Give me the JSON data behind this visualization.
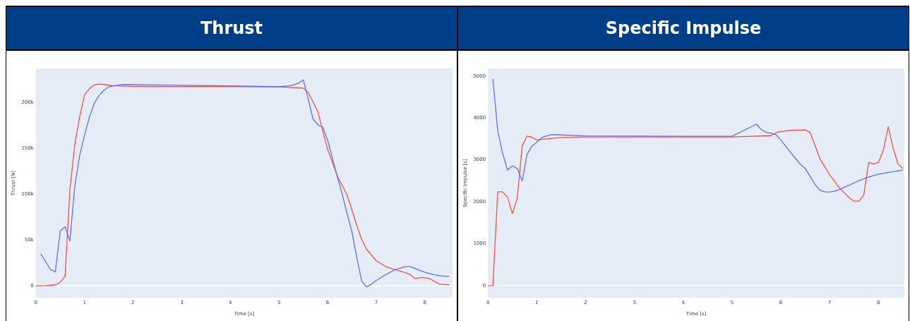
{
  "chart_data": [
    {
      "type": "line",
      "title": "Thrust",
      "xlabel": "Time [s]",
      "ylabel": "Thrust [N]",
      "xlim": [
        0,
        8.57
      ],
      "ylim": [
        -13000,
        237000
      ],
      "xticks": [
        0,
        1,
        2,
        3,
        4,
        5,
        6,
        7,
        8
      ],
      "yticks": [
        0,
        {
          "value": 50000,
          "label": "50k"
        },
        {
          "value": 100000,
          "label": "100k"
        },
        {
          "value": 150000,
          "label": "150k"
        },
        {
          "value": 200000,
          "label": "200k"
        }
      ],
      "grid": false,
      "legend": false,
      "marker": "none",
      "line_style": "solid",
      "ref_lines": [
        {
          "axis": "y",
          "value": 0,
          "color": "#ffffff"
        }
      ],
      "series": [
        {
          "color": "#636efa",
          "x": [
            0.1,
            0.3,
            0.4,
            0.5,
            0.6,
            0.7,
            0.8,
            0.9,
            1.0,
            1.1,
            1.2,
            1.3,
            1.4,
            1.5,
            1.6,
            1.8,
            2.5,
            4.0,
            5.0,
            5.2,
            5.3,
            5.4,
            5.5,
            5.6,
            5.7,
            5.8,
            5.9,
            6.0,
            6.1,
            6.2,
            6.3,
            6.4,
            6.5,
            6.6,
            6.7,
            6.8,
            6.9,
            7.0,
            7.2,
            7.4,
            7.6,
            7.7,
            7.8,
            8.0,
            8.2,
            8.4,
            8.5
          ],
          "values": [
            35000,
            18000,
            15500,
            60000,
            64500,
            49000,
            109000,
            142000,
            164000,
            184000,
            199000,
            207500,
            213000,
            217000,
            218000,
            219500,
            219000,
            218000,
            217000,
            218000,
            219000,
            221000,
            224500,
            204000,
            182000,
            175500,
            173000,
            159000,
            139000,
            119000,
            100000,
            79000,
            59000,
            31000,
            5500,
            -1000,
            2000,
            6000,
            12500,
            18000,
            21000,
            21000,
            19000,
            15000,
            12000,
            10500,
            10500
          ]
        },
        {
          "color": "#ef553b",
          "x": [
            0,
            0.2,
            0.3,
            0.4,
            0.5,
            0.6,
            0.7,
            0.8,
            0.9,
            1.0,
            1.1,
            1.2,
            1.3,
            1.4,
            1.6,
            2.0,
            5.0,
            5.5,
            5.6,
            5.8,
            5.9,
            6.0,
            6.2,
            6.4,
            6.5,
            6.6,
            6.7,
            6.8,
            7.0,
            7.2,
            7.4,
            7.6,
            7.7,
            7.8,
            7.9,
            8.0,
            8.1,
            8.2,
            8.3,
            8.5
          ],
          "values": [
            0,
            300,
            800,
            1200,
            4000,
            10500,
            105000,
            154000,
            184000,
            208000,
            215000,
            219000,
            220000,
            219500,
            218000,
            217500,
            217000,
            215500,
            211000,
            190000,
            169000,
            149000,
            120000,
            99000,
            83000,
            66000,
            51000,
            40000,
            27500,
            21000,
            17500,
            14500,
            12500,
            8000,
            9000,
            9000,
            8000,
            5000,
            2000,
            1200
          ]
        }
      ]
    },
    {
      "type": "line",
      "title": "Specific Impulse",
      "xlabel": "Time [s]",
      "ylabel": "Specific Impulse [s]",
      "xlim": [
        0,
        8.53
      ],
      "ylim": [
        -290,
        5180
      ],
      "xticks": [
        0,
        1,
        2,
        3,
        4,
        5,
        6,
        7,
        8
      ],
      "yticks": [
        0,
        1000,
        2000,
        3000,
        4000,
        5000
      ],
      "grid": false,
      "legend": false,
      "marker": "none",
      "line_style": "solid",
      "ref_lines": [
        {
          "axis": "y",
          "value": 0,
          "color": "#ffffff"
        }
      ],
      "series": [
        {
          "color": "#636efa",
          "x": [
            0.1,
            0.2,
            0.3,
            0.4,
            0.5,
            0.6,
            0.7,
            0.8,
            0.9,
            1.0,
            1.1,
            1.2,
            1.3,
            1.5,
            2.0,
            4.0,
            5.0,
            5.5,
            5.6,
            5.7,
            5.8,
            5.9,
            6.0,
            6.2,
            6.4,
            6.5,
            6.6,
            6.7,
            6.8,
            6.9,
            7.0,
            7.1,
            7.2,
            7.4,
            7.6,
            7.8,
            8.0,
            8.2,
            8.5
          ],
          "values": [
            4935,
            3693,
            3148,
            2756,
            2859,
            2794,
            2495,
            3132,
            3328,
            3420,
            3529,
            3573,
            3600,
            3595,
            3573,
            3562,
            3562,
            3851,
            3720,
            3655,
            3638,
            3600,
            3475,
            3175,
            2892,
            2794,
            2603,
            2413,
            2277,
            2239,
            2233,
            2250,
            2293,
            2397,
            2505,
            2593,
            2658,
            2702,
            2756
          ]
        },
        {
          "color": "#ef553b",
          "x": [
            0,
            0.1,
            0.2,
            0.3,
            0.4,
            0.5,
            0.6,
            0.7,
            0.8,
            0.9,
            1.0,
            1.1,
            1.3,
            1.5,
            2.0,
            4.0,
            5.0,
            5.8,
            5.9,
            6.0,
            6.2,
            6.5,
            6.6,
            6.8,
            7.0,
            7.2,
            7.4,
            7.5,
            7.6,
            7.7,
            7.8,
            7.9,
            8.0,
            8.1,
            8.2,
            8.3,
            8.4,
            8.5
          ],
          "values": [
            0,
            0,
            2239,
            2239,
            2113,
            1721,
            2086,
            3328,
            3568,
            3540,
            3475,
            3486,
            3513,
            3535,
            3546,
            3546,
            3546,
            3578,
            3649,
            3677,
            3704,
            3715,
            3655,
            3028,
            2647,
            2331,
            2102,
            2015,
            2015,
            2168,
            2941,
            2903,
            2941,
            3230,
            3791,
            3284,
            2903,
            2794
          ]
        }
      ]
    }
  ]
}
